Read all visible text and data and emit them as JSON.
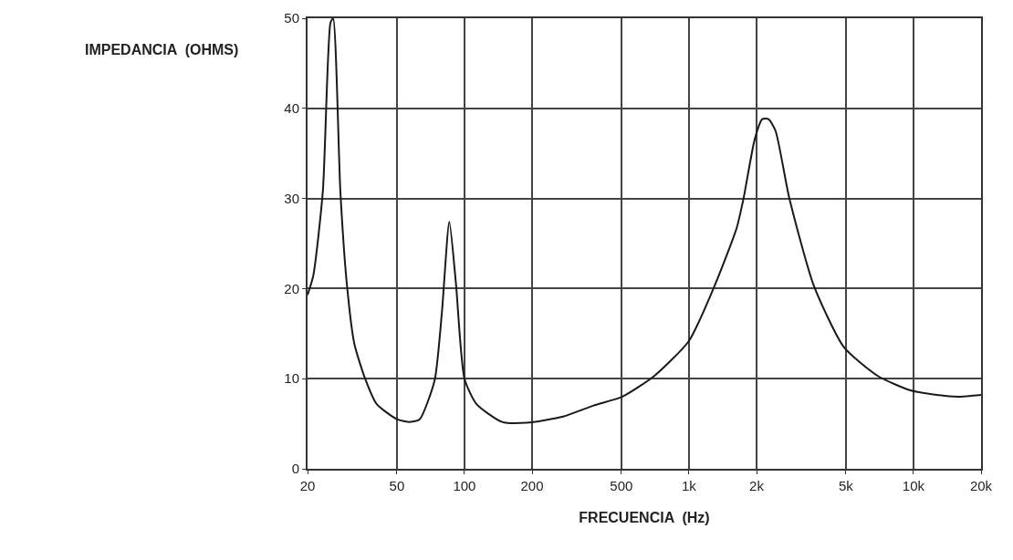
{
  "chart_data": {
    "type": "line",
    "xlabel": "FRECUENCIA  (Hz)",
    "ylabel": "IMPEDANCIA  (OHMS)",
    "log": "x",
    "x": [
      20,
      21.2,
      23.4,
      25.3,
      26,
      28,
      29.9,
      32.3,
      36.1,
      40.6,
      50,
      57.4,
      63.2,
      73.6,
      79.3,
      85.6,
      91.6,
      100,
      113,
      147,
      189,
      275,
      374,
      505,
      700,
      1000,
      1300,
      1630,
      1750,
      1960,
      2120,
      2260,
      2430,
      2800,
      3600,
      4900,
      6940,
      9700,
      12700,
      15800,
      20000
    ],
    "series": [
      {
        "color": "#1a1a1a",
        "values": [
          19.3,
          21.4,
          30.8,
          49.5,
          50,
          30.8,
          20.6,
          13.9,
          10,
          7.2,
          5.5,
          5.2,
          5.5,
          9.8,
          17.3,
          27.4,
          20.6,
          10,
          7.2,
          5.2,
          5.1,
          5.8,
          7,
          8,
          10.3,
          14.2,
          20.3,
          26.7,
          30,
          36.5,
          38.8,
          38.8,
          37.5,
          30,
          20.3,
          13.5,
          10.3,
          8.7,
          8.2,
          8,
          8.2
        ]
      }
    ],
    "xlim": [
      20,
      20000
    ],
    "xticks": [
      20,
      50,
      100,
      200,
      500,
      {
        "value": 1000,
        "label": "1k"
      },
      {
        "value": 2000,
        "label": "2k"
      },
      {
        "value": 5000,
        "label": "5k"
      },
      {
        "value": 10000,
        "label": "10k"
      },
      {
        "value": 20000,
        "label": "20k"
      }
    ],
    "ylim": [
      0,
      50
    ],
    "yticks": [
      0,
      10,
      20,
      30,
      40,
      50
    ],
    "grid": true,
    "marker": "none",
    "line_style": "solid"
  }
}
